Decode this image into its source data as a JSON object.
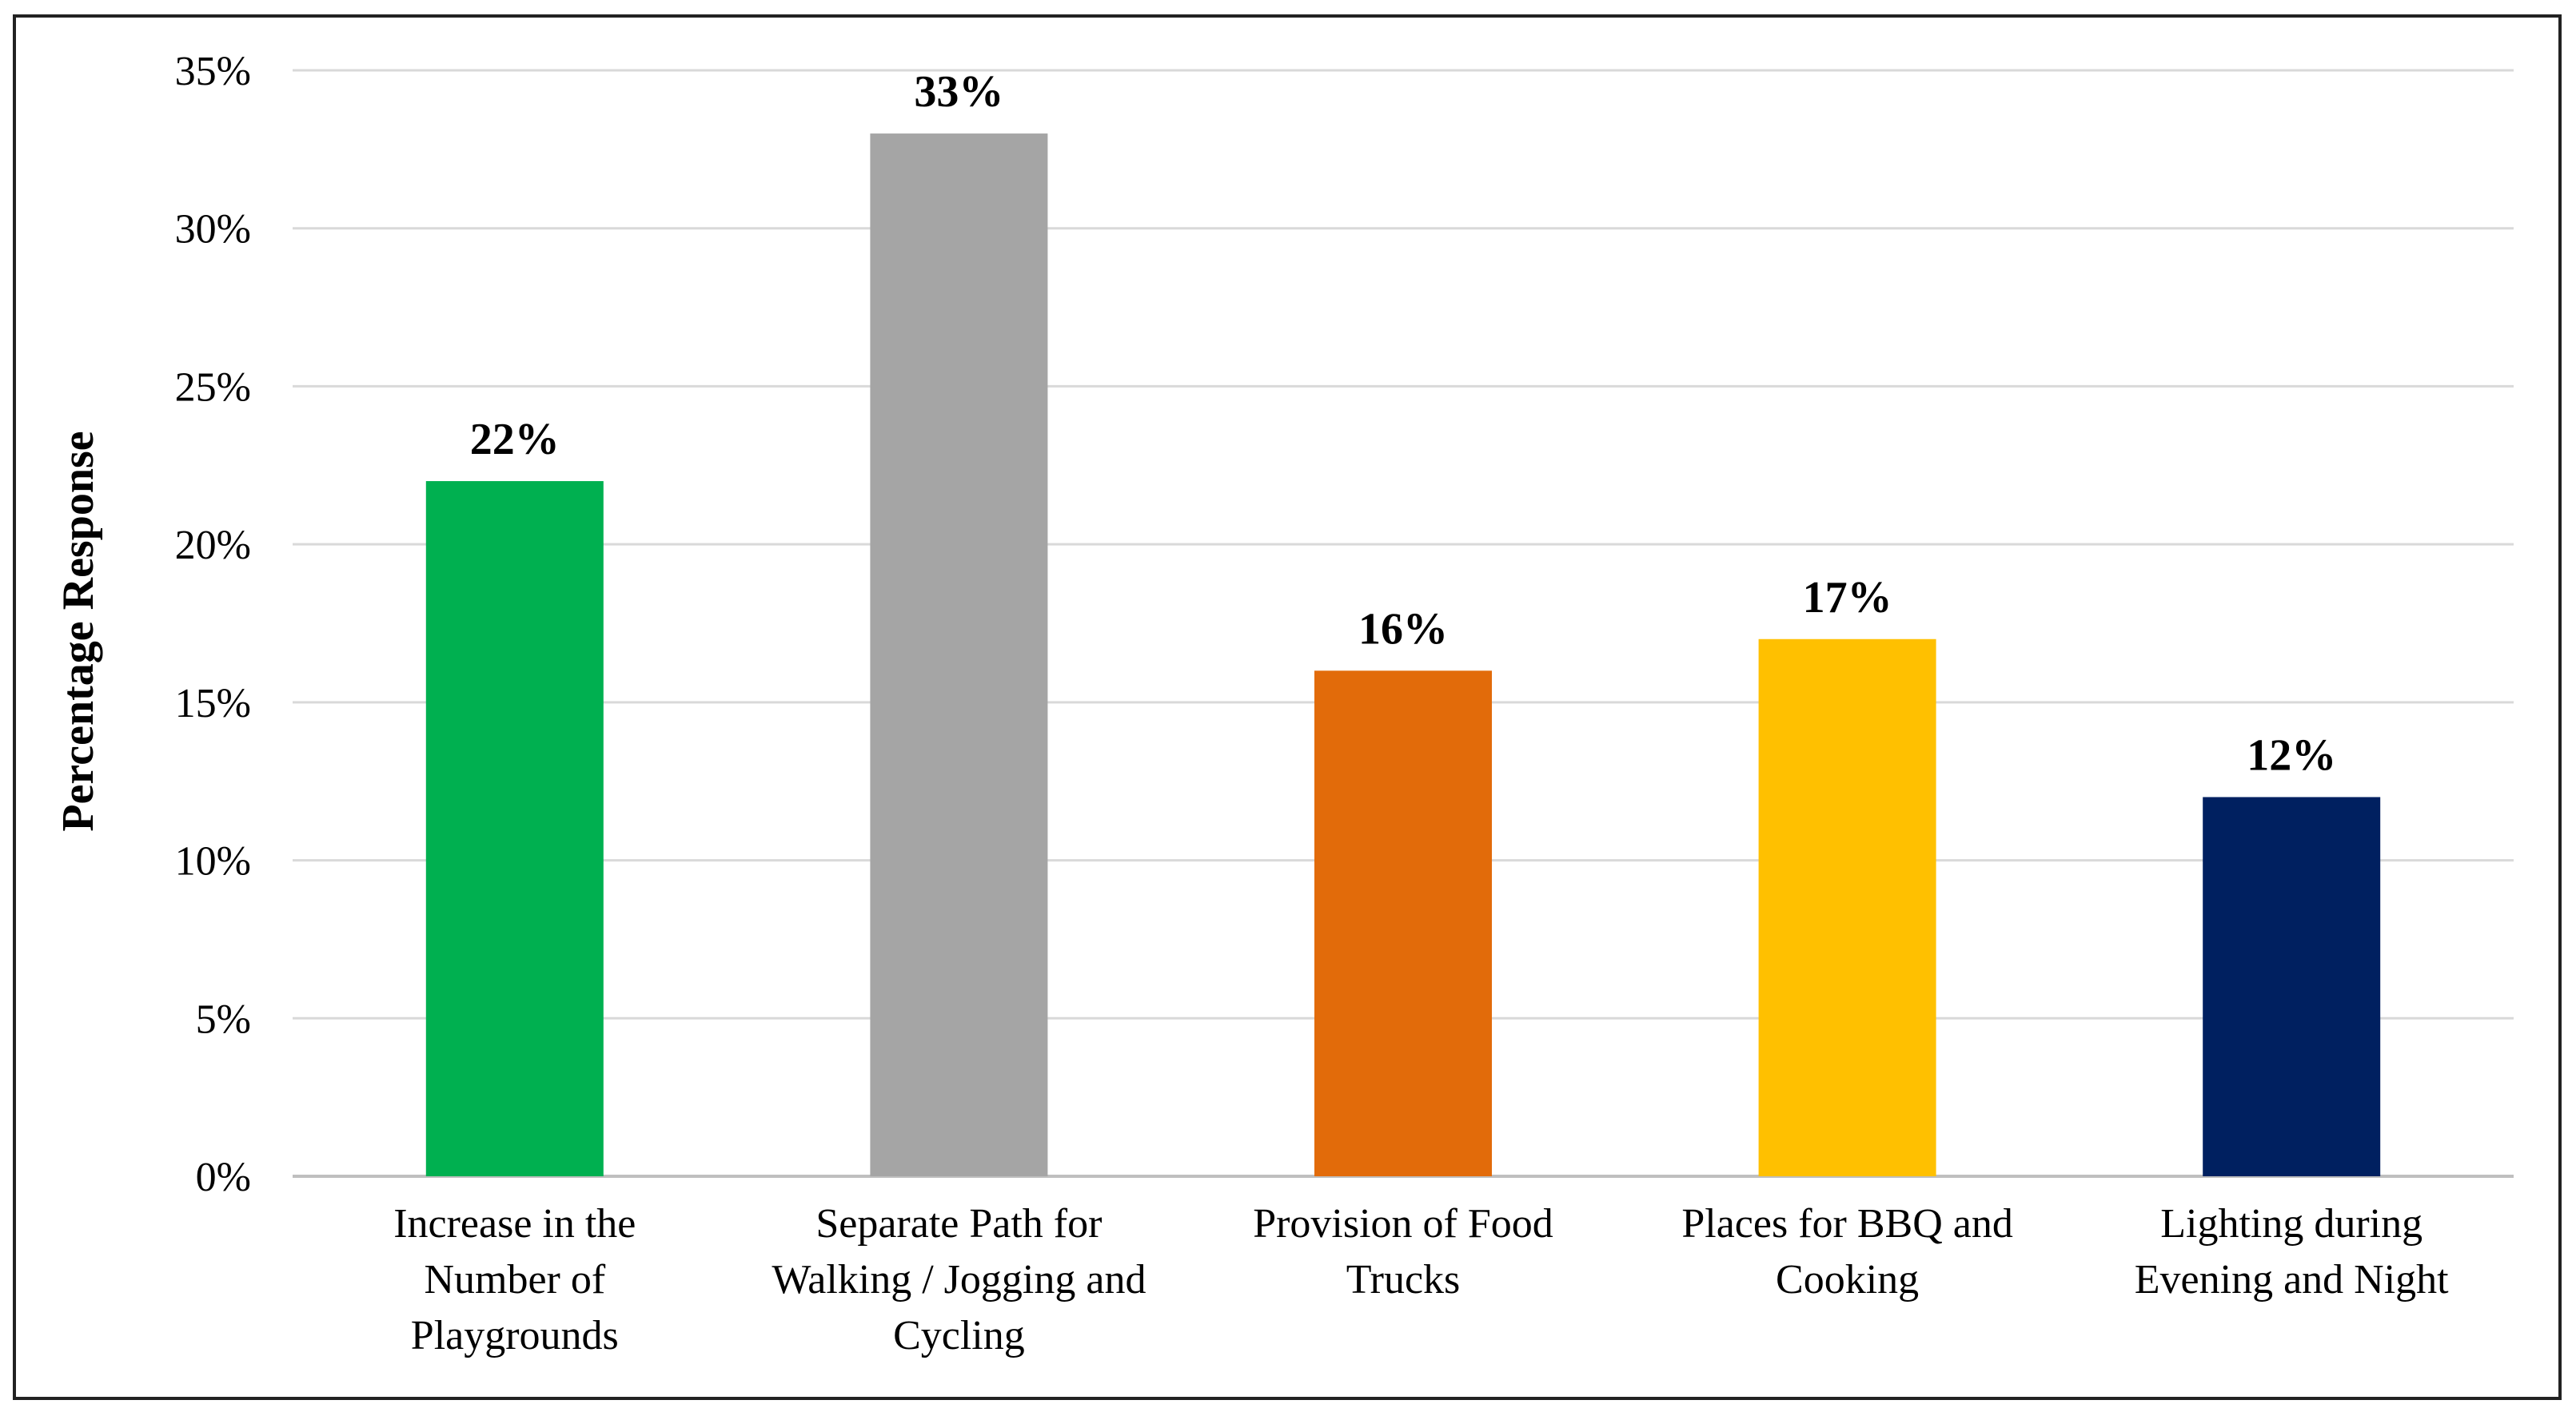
{
  "chart_data": {
    "type": "bar",
    "title": "",
    "xlabel": "",
    "ylabel": "Percentage Response",
    "ylim": [
      0,
      35
    ],
    "y_ticks": [
      0,
      5,
      10,
      15,
      20,
      25,
      30,
      35
    ],
    "y_tick_suffix": "%",
    "grid": true,
    "legend": "none",
    "categories": [
      [
        "Increase in the",
        "Number of",
        "Playgrounds"
      ],
      [
        "Separate Path for",
        "Walking / Jogging and",
        "Cycling"
      ],
      [
        "Provision of Food",
        "Trucks"
      ],
      [
        "Places for BBQ and",
        "Cooking"
      ],
      [
        "Lighting during",
        "Evening and Night"
      ]
    ],
    "values": [
      22,
      33,
      16,
      17,
      12
    ],
    "data_labels": [
      "22%",
      "33%",
      "16%",
      "17%",
      "12%"
    ],
    "colors": [
      "#00B050",
      "#A5A5A5",
      "#E26B0A",
      "#FFC000",
      "#002060"
    ],
    "grid_color": "#D9D9D9",
    "axis_color": "#BFBFBF"
  }
}
